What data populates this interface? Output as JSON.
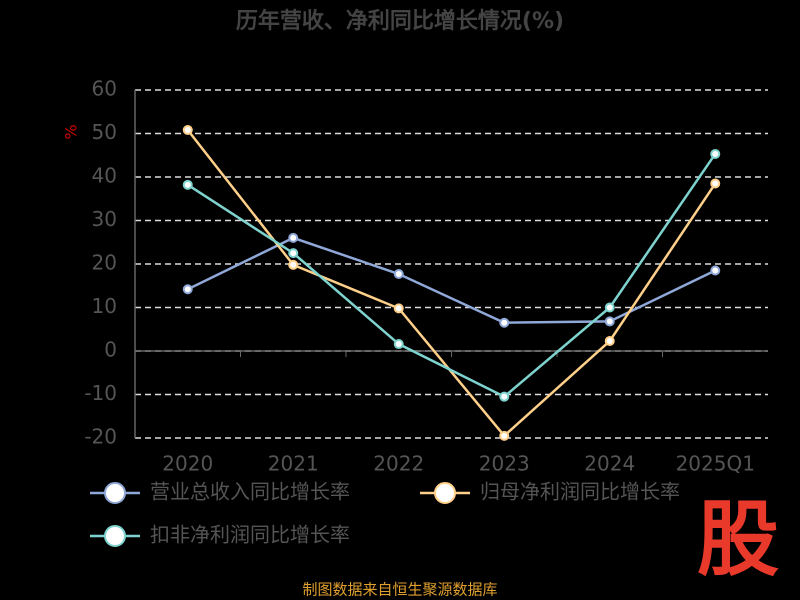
{
  "chart_data": {
    "type": "line",
    "title": "历年营收、净利同比增长情况(%)",
    "y_label": "%",
    "categories": [
      "2020",
      "2021",
      "2022",
      "2023",
      "2024",
      "2025Q1"
    ],
    "series": [
      {
        "name": "营业总收入同比增长率",
        "color": "#8fa8d8",
        "values": [
          14.2,
          26,
          17.7,
          6.5,
          6.8,
          18.5
        ]
      },
      {
        "name": "归母净利润同比增长率",
        "color": "#ffd08a",
        "values": [
          50.8,
          19.8,
          9.8,
          -19.5,
          2.3,
          38.5
        ]
      },
      {
        "name": "扣非净利润同比增长率",
        "color": "#7fd3cf",
        "values": [
          38.2,
          22.5,
          1.6,
          -10.5,
          10,
          45.3
        ]
      }
    ],
    "ylim": [
      -20,
      60
    ],
    "yticks": [
      -20,
      -10,
      0,
      10,
      20,
      30,
      40,
      50,
      60
    ],
    "grid": true,
    "source": "制图数据来自恒生聚源数据库",
    "logo": "股"
  }
}
